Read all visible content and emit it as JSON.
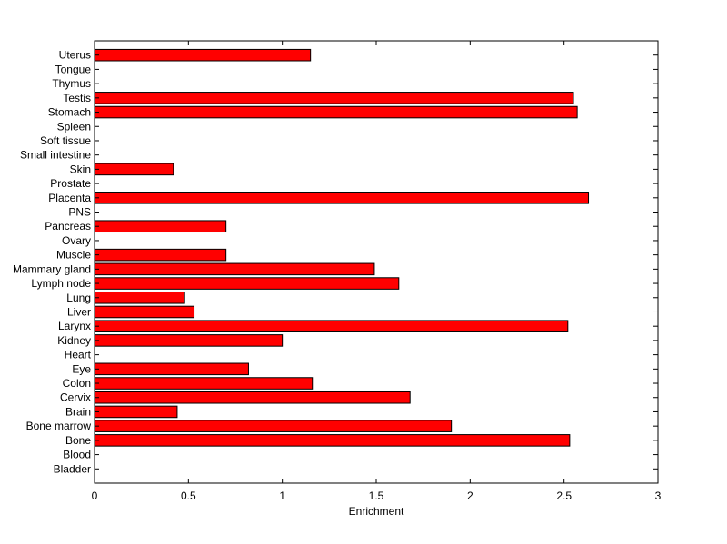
{
  "chart_data": {
    "type": "bar",
    "orientation": "horizontal",
    "title": "",
    "xlabel": "Enrichment",
    "ylabel": "",
    "xlim": [
      0,
      3
    ],
    "xticks": [
      0,
      0.5,
      1,
      1.5,
      2,
      2.5,
      3
    ],
    "xtick_labels": [
      "0",
      "0.5",
      "1",
      "1.5",
      "2",
      "2.5",
      "3"
    ],
    "grid": false,
    "bar_color": "#ff0000",
    "categories": [
      "Bladder",
      "Blood",
      "Bone",
      "Bone marrow",
      "Brain",
      "Cervix",
      "Colon",
      "Eye",
      "Heart",
      "Kidney",
      "Larynx",
      "Liver",
      "Lung",
      "Lymph node",
      "Mammary gland",
      "Muscle",
      "Ovary",
      "Pancreas",
      "PNS",
      "Placenta",
      "Prostate",
      "Skin",
      "Small intestine",
      "Soft tissue",
      "Spleen",
      "Stomach",
      "Testis",
      "Thymus",
      "Tongue",
      "Uterus"
    ],
    "values": [
      0,
      0,
      2.53,
      1.9,
      0.44,
      1.68,
      1.16,
      0.82,
      0,
      1.0,
      2.52,
      0.53,
      0.48,
      1.62,
      1.49,
      0.7,
      0,
      0.7,
      0,
      2.63,
      0,
      0.42,
      0,
      0,
      0,
      2.57,
      2.55,
      0,
      0,
      1.15
    ]
  }
}
